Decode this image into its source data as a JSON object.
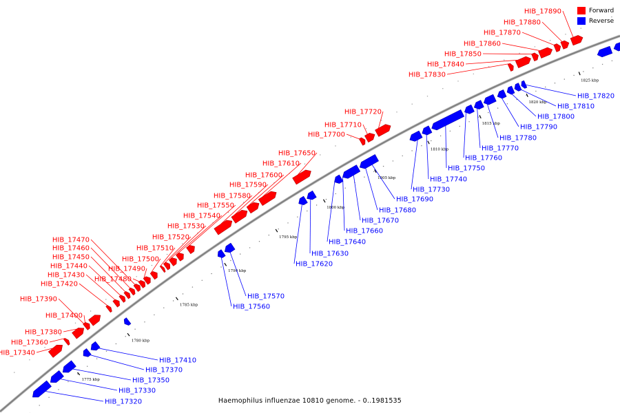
{
  "caption": "Haemophilus influenzae 10810 genome. - 0..1981535",
  "legend": [
    {
      "label": "Forward",
      "color": "#ff0000"
    },
    {
      "label": "Reverse",
      "color": "#0000ff"
    }
  ],
  "colors": {
    "forward": "#ff0000",
    "reverse": "#0000ff",
    "backbone": "#808080"
  },
  "ticks": [
    "1775 kbp",
    "1780 kbp",
    "1785 kbp",
    "1790 kbp",
    "1795 kbp",
    "1800 kbp",
    "1805 kbp",
    "1810 kbp",
    "1815 kbp",
    "1820 kbp",
    "1825 kbp"
  ],
  "forward_genes": [
    "HIB_17340",
    "HIB_17360",
    "HIB_17380",
    "HIB_17400",
    "HIB_17390",
    "HIB_17420",
    "HIB_17430",
    "HIB_17440",
    "HIB_17450",
    "HIB_17460",
    "HIB_17470",
    "HIB_17480",
    "HIB_17490",
    "HIB_17500",
    "HIB_17510",
    "HIB_17520",
    "HIB_17530",
    "HIB_17540",
    "HIB_17550",
    "HIB_17580",
    "HIB_17590",
    "HIB_17600",
    "HIB_17610",
    "HIB_17650",
    "HIB_17700",
    "HIB_17710",
    "HIB_17720",
    "HIB_17830",
    "HIB_17840",
    "HIB_17850",
    "HIB_17860",
    "HIB_17870",
    "HIB_17880",
    "HIB_17890"
  ],
  "reverse_genes": [
    "HIB_17320",
    "HIB_17330",
    "HIB_17350",
    "HIB_17370",
    "HIB_17410",
    "HIB_17560",
    "HIB_17570",
    "HIB_17620",
    "HIB_17630",
    "HIB_17640",
    "HIB_17660",
    "HIB_17670",
    "HIB_17680",
    "HIB_17690",
    "HIB_17730",
    "HIB_17740",
    "HIB_17750",
    "HIB_17760",
    "HIB_17770",
    "HIB_17780",
    "HIB_17790",
    "HIB_17800",
    "HIB_17810",
    "HIB_17820"
  ]
}
